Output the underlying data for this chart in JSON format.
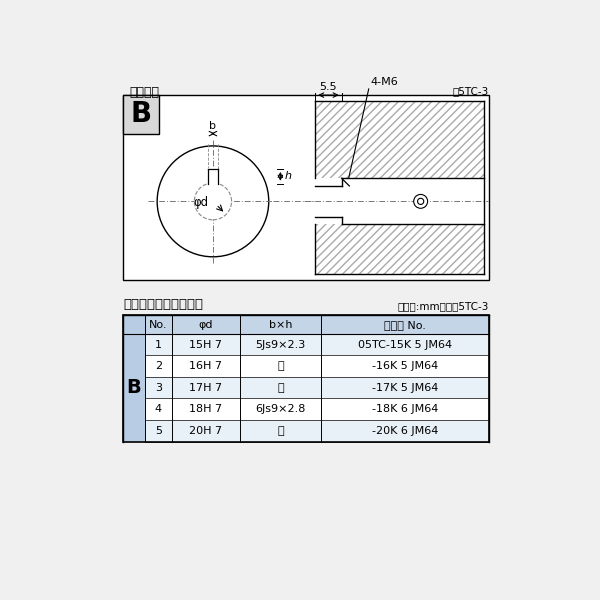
{
  "title_diagram": "軸穴形状",
  "fig_label": "図5TC-3",
  "B_label": "B",
  "dim_55": "5.5",
  "dim_4M6": "4-M6",
  "dim_b": "b",
  "dim_h": "h",
  "dim_phid": "φd",
  "table_title": "軸穴形状コード一覧表",
  "table_unit": "（単位:mm）　表5TC-3",
  "col_headers": [
    "No.",
    "φd",
    "b×h",
    "コード No."
  ],
  "rows": [
    [
      "1",
      "15H 7",
      "5Js9×2.3",
      "05TC-15K 5 JM64"
    ],
    [
      "2",
      "16H 7",
      "〃",
      "-16K 5 JM64"
    ],
    [
      "3",
      "17H 7",
      "〃",
      "-17K 5 JM64"
    ],
    [
      "4",
      "18H 7",
      "6Js9×2.8",
      "-18K 6 JM64"
    ],
    [
      "5",
      "20H 7",
      "〃",
      "-20K 6 JM64"
    ]
  ],
  "row_B_label": "B",
  "bg_color": "#f0f0f0",
  "box_bg": "#ffffff",
  "line_color": "#000000",
  "table_header_bg": "#c5d5e8",
  "table_row_bg_odd": "#e8f0f8",
  "table_row_bg_even": "#ffffff",
  "table_border": "#000000"
}
